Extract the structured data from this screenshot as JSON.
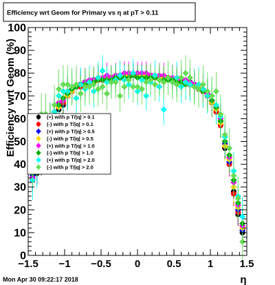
{
  "canvas": {
    "date_stamp": "Mon Apr 30 09:22:17 2018"
  },
  "chart_data": {
    "type": "scatter",
    "title": "Efficiency wrt Geom for Primary vs   η at pT > 0.11",
    "xlabel": "η",
    "ylabel": "Efficiency wrt Geom (%)",
    "xlim": [
      -1.5,
      1.5
    ],
    "ylim": [
      0,
      100
    ],
    "xticks": [
      -1.5,
      -1,
      -0.5,
      0,
      0.5,
      1,
      1.5
    ],
    "xtick_labels": [
      "−1.5",
      "−1",
      "−0.5",
      "0",
      "0.5",
      "1",
      "1.5"
    ],
    "yticks": [
      0,
      10,
      20,
      30,
      40,
      50,
      60,
      70,
      80,
      90,
      100
    ],
    "ytick_labels": [
      "0",
      "10",
      "20",
      "30",
      "40",
      "50",
      "60",
      "70",
      "80",
      "90",
      "100"
    ],
    "grid": false,
    "legend_position": "left-center",
    "series": [
      {
        "name": "(+) with p T/|q| > 0.1",
        "color": "#000000",
        "marker": "circle",
        "x": [
          -1.44,
          -1.38,
          -1.32,
          -1.26,
          -1.2,
          -1.14,
          -1.08,
          -1.02,
          -0.96,
          -0.9,
          -0.84,
          -0.78,
          -0.72,
          -0.66,
          -0.6,
          -0.54,
          -0.48,
          -0.42,
          -0.36,
          -0.3,
          -0.24,
          -0.18,
          -0.12,
          -0.06,
          0.0,
          0.06,
          0.12,
          0.18,
          0.24,
          0.3,
          0.36,
          0.42,
          0.48,
          0.54,
          0.6,
          0.66,
          0.72,
          0.78,
          0.84,
          0.9,
          0.96,
          1.02,
          1.08,
          1.14,
          1.2,
          1.26,
          1.32,
          1.38,
          1.44
        ],
        "y": [
          33,
          36,
          40,
          47,
          55,
          60,
          64,
          66,
          70,
          72,
          74,
          75,
          76,
          76,
          77,
          77,
          77,
          78,
          78,
          78,
          78,
          79,
          79,
          79,
          79,
          79,
          79,
          78,
          78,
          78,
          78,
          78,
          77,
          77,
          77,
          76,
          76,
          75,
          74,
          72,
          70,
          67,
          64,
          58,
          47,
          40,
          28,
          18,
          10
        ]
      },
      {
        "name": "(-) with p T/|q| > 0.1",
        "color": "#ff0000",
        "marker": "circle",
        "x": [
          -1.44,
          -1.38,
          -1.32,
          -1.26,
          -1.2,
          -1.14,
          -1.08,
          -1.02,
          -0.96,
          -0.9,
          -0.84,
          -0.78,
          -0.72,
          -0.66,
          -0.6,
          -0.54,
          -0.48,
          -0.42,
          -0.36,
          -0.3,
          -0.24,
          -0.18,
          -0.12,
          -0.06,
          0.0,
          0.06,
          0.12,
          0.18,
          0.24,
          0.3,
          0.36,
          0.42,
          0.48,
          0.54,
          0.6,
          0.66,
          0.72,
          0.78,
          0.84,
          0.9,
          0.96,
          1.02,
          1.08,
          1.14,
          1.2,
          1.26,
          1.32,
          1.38,
          1.44
        ],
        "y": [
          34,
          38,
          42,
          49,
          57,
          61,
          65,
          67,
          70,
          72,
          74,
          74,
          75,
          76,
          76,
          77,
          77,
          78,
          78,
          78,
          79,
          79,
          79,
          79,
          79,
          79,
          79,
          79,
          78,
          78,
          78,
          78,
          77,
          77,
          77,
          76,
          75,
          75,
          73,
          72,
          70,
          67,
          63,
          57,
          48,
          40,
          27,
          19,
          12
        ]
      },
      {
        "name": "(+) with p T/|q| > 0.5",
        "color": "#0000ff",
        "marker": "diamond",
        "x": [
          -1.44,
          -1.38,
          -1.32,
          -1.26,
          -1.2,
          -1.14,
          -1.08,
          -1.02,
          -0.96,
          -0.9,
          -0.84,
          -0.78,
          -0.72,
          -0.66,
          -0.6,
          -0.54,
          -0.48,
          -0.42,
          -0.36,
          -0.3,
          -0.24,
          -0.18,
          -0.12,
          -0.06,
          0.0,
          0.06,
          0.12,
          0.18,
          0.24,
          0.3,
          0.36,
          0.42,
          0.48,
          0.54,
          0.6,
          0.66,
          0.72,
          0.78,
          0.84,
          0.9,
          0.96,
          1.02,
          1.08,
          1.14,
          1.2,
          1.26,
          1.32,
          1.38,
          1.44
        ],
        "y": [
          35,
          38,
          43,
          50,
          58,
          62,
          66,
          68,
          71,
          73,
          74,
          75,
          76,
          76,
          77,
          78,
          78,
          78,
          78,
          79,
          79,
          80,
          80,
          80,
          80,
          80,
          79,
          79,
          79,
          78,
          78,
          78,
          77,
          77,
          77,
          76,
          76,
          75,
          74,
          73,
          71,
          68,
          65,
          59,
          49,
          41,
          30,
          20,
          11
        ]
      },
      {
        "name": "(-) with p T/|q| > 0.5",
        "color": "#ffdd00",
        "marker": "diamond",
        "x": [
          -1.44,
          -1.38,
          -1.32,
          -1.26,
          -1.2,
          -1.14,
          -1.08,
          -1.02,
          -0.96,
          -0.9,
          -0.84,
          -0.78,
          -0.72,
          -0.66,
          -0.6,
          -0.54,
          -0.48,
          -0.42,
          -0.36,
          -0.3,
          -0.24,
          -0.18,
          -0.12,
          -0.06,
          0.0,
          0.06,
          0.12,
          0.18,
          0.24,
          0.3,
          0.36,
          0.42,
          0.48,
          0.54,
          0.6,
          0.66,
          0.72,
          0.78,
          0.84,
          0.9,
          0.96,
          1.02,
          1.08,
          1.14,
          1.2,
          1.26,
          1.32,
          1.38,
          1.44
        ],
        "y": [
          36,
          39,
          44,
          51,
          58,
          62,
          65,
          68,
          70,
          72,
          74,
          75,
          75,
          76,
          77,
          77,
          77,
          78,
          78,
          78,
          78,
          79,
          79,
          79,
          79,
          79,
          79,
          79,
          78,
          78,
          78,
          77,
          77,
          77,
          76,
          76,
          75,
          74,
          74,
          72,
          70,
          67,
          64,
          58,
          48,
          42,
          30,
          21,
          12
        ]
      },
      {
        "name": "(+) with p T/|q| > 1.0",
        "color": "#ff00ff",
        "marker": "diamond",
        "x": [
          -1.44,
          -1.38,
          -1.32,
          -1.26,
          -1.2,
          -1.14,
          -1.08,
          -1.02,
          -0.96,
          -0.9,
          -0.84,
          -0.78,
          -0.72,
          -0.66,
          -0.6,
          -0.54,
          -0.48,
          -0.42,
          -0.36,
          -0.3,
          -0.24,
          -0.18,
          -0.12,
          -0.06,
          0.0,
          0.06,
          0.12,
          0.18,
          0.24,
          0.3,
          0.36,
          0.42,
          0.48,
          0.54,
          0.6,
          0.66,
          0.72,
          0.78,
          0.84,
          0.9,
          0.96,
          1.02,
          1.08,
          1.14,
          1.2,
          1.26,
          1.32,
          1.38,
          1.44
        ],
        "y": [
          34,
          39,
          45,
          52,
          60,
          63,
          67,
          68,
          72,
          73,
          75,
          75,
          76,
          77,
          77,
          78,
          78,
          79,
          78,
          79,
          79,
          80,
          80,
          80,
          80,
          80,
          80,
          79,
          79,
          79,
          79,
          78,
          78,
          78,
          77,
          77,
          76,
          75,
          75,
          73,
          71,
          68,
          65,
          60,
          50,
          43,
          32,
          22,
          13
        ]
      },
      {
        "name": "(-) with p T/|q| > 1.0",
        "color": "#00aa00",
        "marker": "diamond",
        "x": [
          -1.44,
          -1.38,
          -1.32,
          -1.26,
          -1.2,
          -1.14,
          -1.08,
          -1.02,
          -0.96,
          -0.9,
          -0.84,
          -0.78,
          -0.72,
          -0.66,
          -0.6,
          -0.54,
          -0.48,
          -0.42,
          -0.36,
          -0.3,
          -0.24,
          -0.18,
          -0.12,
          -0.06,
          0.0,
          0.06,
          0.12,
          0.18,
          0.24,
          0.3,
          0.36,
          0.42,
          0.48,
          0.54,
          0.6,
          0.66,
          0.72,
          0.78,
          0.84,
          0.9,
          0.96,
          1.02,
          1.08,
          1.14,
          1.2,
          1.26,
          1.32,
          1.38,
          1.44
        ],
        "y": [
          36,
          40,
          46,
          53,
          59,
          63,
          66,
          69,
          71,
          73,
          74,
          75,
          75,
          76,
          76,
          77,
          77,
          77,
          77,
          78,
          78,
          78,
          78,
          79,
          78,
          78,
          78,
          78,
          78,
          77,
          77,
          77,
          77,
          76,
          76,
          75,
          75,
          74,
          73,
          72,
          70,
          68,
          65,
          59,
          50,
          44,
          33,
          23,
          14
        ]
      },
      {
        "name": "(+) with p T/|q| > 2.0",
        "color": "#00ffff",
        "marker": "diamond",
        "x": [
          -1.44,
          -1.38,
          -1.32,
          -1.26,
          -1.2,
          -1.14,
          -1.08,
          -1.02,
          -0.96,
          -0.9,
          -0.84,
          -0.78,
          -0.72,
          -0.66,
          -0.6,
          -0.54,
          -0.48,
          -0.42,
          -0.36,
          -0.3,
          -0.24,
          -0.18,
          -0.12,
          -0.06,
          0.0,
          0.06,
          0.12,
          0.18,
          0.24,
          0.3,
          0.36,
          0.42,
          0.48,
          0.54,
          0.6,
          0.66,
          0.72,
          0.78,
          0.84,
          0.9,
          0.96,
          1.02,
          1.08,
          1.14,
          1.2,
          1.26,
          1.32,
          1.38,
          1.44
        ],
        "y": [
          33,
          38,
          44,
          53,
          59,
          63,
          70,
          72,
          72,
          74,
          69,
          75,
          73,
          76,
          72,
          78,
          81,
          76,
          76,
          77,
          79,
          77,
          75,
          80,
          72,
          77,
          70,
          76,
          79,
          74,
          64,
          78,
          76,
          78,
          74,
          76,
          75,
          74,
          75,
          73,
          70,
          70,
          66,
          61,
          52,
          47,
          37,
          26,
          17
        ]
      },
      {
        "name": "(-) with p T/|q| > 2.0",
        "color": "#66dd55",
        "marker": "diamond",
        "x": [
          -1.44,
          -1.38,
          -1.32,
          -1.26,
          -1.2,
          -1.14,
          -1.08,
          -1.02,
          -0.96,
          -0.9,
          -0.84,
          -0.78,
          -0.72,
          -0.66,
          -0.6,
          -0.54,
          -0.48,
          -0.42,
          -0.36,
          -0.3,
          -0.24,
          -0.18,
          -0.12,
          -0.06,
          0.0,
          0.06,
          0.12,
          0.18,
          0.24,
          0.3,
          0.36,
          0.42,
          0.48,
          0.54,
          0.6,
          0.66,
          0.72,
          0.78,
          0.84,
          0.9,
          0.96,
          1.02,
          1.08,
          1.14,
          1.2,
          1.26,
          1.32,
          1.38,
          1.44
        ],
        "y": [
          40,
          44,
          62,
          62,
          58,
          66,
          73,
          75,
          75,
          74,
          75,
          71,
          74,
          74,
          75,
          73,
          74,
          71,
          76,
          76,
          70,
          74,
          77,
          74,
          74,
          73,
          76,
          77,
          75,
          77,
          76,
          78,
          76,
          75,
          78,
          80,
          78,
          74,
          73,
          75,
          72,
          70,
          72,
          62,
          53,
          47,
          35,
          25,
          6
        ]
      }
    ]
  }
}
